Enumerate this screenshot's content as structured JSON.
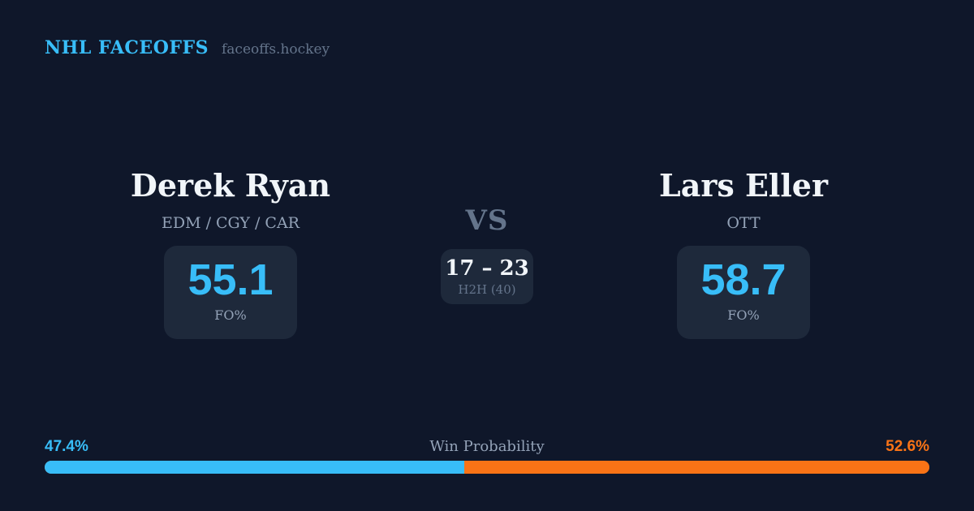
{
  "header": {
    "brand": "NHL FACEOFFS",
    "site": "faceoffs.hockey"
  },
  "players": {
    "left": {
      "name": "Derek Ryan",
      "teams": "EDM / CGY / CAR",
      "fo_pct": "55.1",
      "fo_label": "FO%"
    },
    "right": {
      "name": "Lars Eller",
      "teams": "OTT",
      "fo_pct": "58.7",
      "fo_label": "FO%"
    }
  },
  "center": {
    "vs_label": "VS",
    "h2h_score": "17 – 23",
    "h2h_sample": "H2H (40)"
  },
  "win_probability": {
    "title": "Win Probability",
    "left_label": "47.4%",
    "right_label": "52.6%",
    "left_value": 47.4,
    "right_value": 52.6
  },
  "colors": {
    "background": "#0f172a",
    "card": "#1e293b",
    "accent_blue": "#38bdf8",
    "accent_orange": "#f97316",
    "text_primary": "#f1f5f9",
    "text_muted": "#94a3b8",
    "text_subtle": "#64748b"
  }
}
